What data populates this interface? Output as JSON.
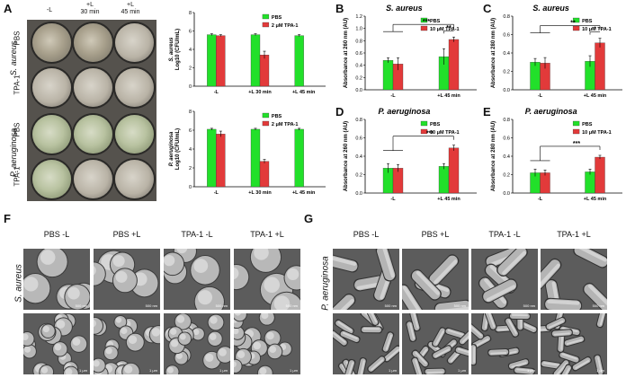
{
  "panels": {
    "A": {
      "label": "A",
      "col_headers": [
        "-L",
        "+L\n30 min",
        "+L\n45 min"
      ],
      "species": [
        {
          "name": "S. aureus",
          "rows": [
            "PBS",
            "TPA-1"
          ]
        },
        {
          "name": "P. aeruginosa",
          "rows": [
            "PBS",
            "TPA-1"
          ]
        }
      ]
    },
    "B": {
      "label": "B"
    },
    "C": {
      "label": "C"
    },
    "D": {
      "label": "D"
    },
    "E": {
      "label": "E"
    },
    "F": {
      "label": "F",
      "col_headers": [
        "PBS -L",
        "PBS +L",
        "TPA-1 -L",
        "TPA-1 +L"
      ],
      "species": "S. aureus",
      "scale_top": "500 nm",
      "scale_bottom": "1 μm"
    },
    "G": {
      "label": "G",
      "col_headers": [
        "PBS -L",
        "PBS +L",
        "TPA-1 -L",
        "TPA-1 +L"
      ],
      "species": "P. aeruginosa",
      "scale_top": "500 nm",
      "scale_bottom": "1 μm"
    }
  },
  "colors": {
    "pbs": "#22e02a",
    "tpa": "#e23a3a"
  },
  "chart_data": [
    {
      "id": "A-top",
      "type": "bar",
      "categories": [
        "-L",
        "+L 30 min",
        "+L 45 min"
      ],
      "ylabel": "S. aureus\nLog10 (CFU/mL)",
      "ylim": [
        0,
        8
      ],
      "yticks": [
        0,
        2,
        4,
        6,
        8
      ],
      "legend": [
        "PBS",
        "2 μM TPA-1"
      ],
      "series": [
        {
          "name": "PBS",
          "values": [
            5.6,
            5.6,
            5.5
          ],
          "err": [
            0.1,
            0.1,
            0.1
          ]
        },
        {
          "name": "2 μM TPA-1",
          "values": [
            5.5,
            3.4,
            0
          ],
          "err": [
            0.1,
            0.4,
            0
          ]
        }
      ]
    },
    {
      "id": "A-bottom",
      "type": "bar",
      "categories": [
        "-L",
        "+L 30 min",
        "+L 45 min"
      ],
      "ylabel": "P. aeruginosa\nLog10 (CFU/mL)",
      "ylim": [
        0,
        8
      ],
      "yticks": [
        0,
        2,
        4,
        6,
        8
      ],
      "legend": [
        "PBS",
        "2 μM TPA-1"
      ],
      "series": [
        {
          "name": "PBS",
          "values": [
            6.1,
            6.1,
            6.1
          ],
          "err": [
            0.1,
            0.1,
            0.1
          ]
        },
        {
          "name": "2 μM TPA-1",
          "values": [
            5.6,
            2.7,
            0
          ],
          "err": [
            0.3,
            0.2,
            0
          ]
        }
      ]
    },
    {
      "id": "B",
      "type": "bar",
      "title": "S. aureus",
      "categories": [
        "-L",
        "+L 45 min"
      ],
      "ylabel": "Absorbance at 260 nm (AU)",
      "ylim": [
        0,
        1.2
      ],
      "yticks": [
        0.0,
        0.2,
        0.4,
        0.6,
        0.8,
        1.0,
        1.2
      ],
      "legend": [
        "PBS",
        "10 μM TPA-1"
      ],
      "series": [
        {
          "name": "PBS",
          "values": [
            0.48,
            0.54
          ],
          "err": [
            0.04,
            0.13
          ]
        },
        {
          "name": "10 μM TPA-1",
          "values": [
            0.42,
            0.82
          ],
          "err": [
            0.1,
            0.04
          ]
        }
      ],
      "sig": [
        "***",
        "**"
      ]
    },
    {
      "id": "C",
      "type": "bar",
      "title": "S. aureus",
      "categories": [
        "-L",
        "+L 45 min"
      ],
      "ylabel": "Absorbance at 280 nm (AU)",
      "ylim": [
        0,
        0.8
      ],
      "yticks": [
        0.0,
        0.2,
        0.4,
        0.6,
        0.8
      ],
      "legend": [
        "PBS",
        "10 μM TPA-1"
      ],
      "series": [
        {
          "name": "PBS",
          "values": [
            0.3,
            0.31
          ],
          "err": [
            0.04,
            0.06
          ]
        },
        {
          "name": "10 μM TPA-1",
          "values": [
            0.29,
            0.51
          ],
          "err": [
            0.06,
            0.05
          ]
        }
      ],
      "sig": [
        "**",
        "*"
      ]
    },
    {
      "id": "D",
      "type": "bar",
      "title": "P. aeruginosa",
      "categories": [
        "-L",
        "+L 45 min"
      ],
      "ylabel": "Absorbance at 260 nm (AU)",
      "ylim": [
        0,
        0.8
      ],
      "yticks": [
        0.0,
        0.2,
        0.4,
        0.6,
        0.8
      ],
      "legend": [
        "PBS",
        "10 μM TPA-1"
      ],
      "series": [
        {
          "name": "PBS",
          "values": [
            0.27,
            0.29
          ],
          "err": [
            0.05,
            0.03
          ]
        },
        {
          "name": "10 μM TPA-1",
          "values": [
            0.27,
            0.49
          ],
          "err": [
            0.04,
            0.03
          ]
        }
      ],
      "sig": [
        "***"
      ]
    },
    {
      "id": "E",
      "type": "bar",
      "title": "P. aeruginosa",
      "categories": [
        "-L",
        "+L 45 min"
      ],
      "ylabel": "Absorbance at 280 nm (AU)",
      "ylim": [
        0,
        0.8
      ],
      "yticks": [
        0.0,
        0.2,
        0.4,
        0.6,
        0.8
      ],
      "legend": [
        "PBS",
        "10 μM TPA-1"
      ],
      "series": [
        {
          "name": "PBS",
          "values": [
            0.22,
            0.23
          ],
          "err": [
            0.04,
            0.03
          ]
        },
        {
          "name": "10 μM TPA-1",
          "values": [
            0.22,
            0.39
          ],
          "err": [
            0.03,
            0.02
          ]
        }
      ],
      "sig": [
        "***"
      ]
    }
  ]
}
